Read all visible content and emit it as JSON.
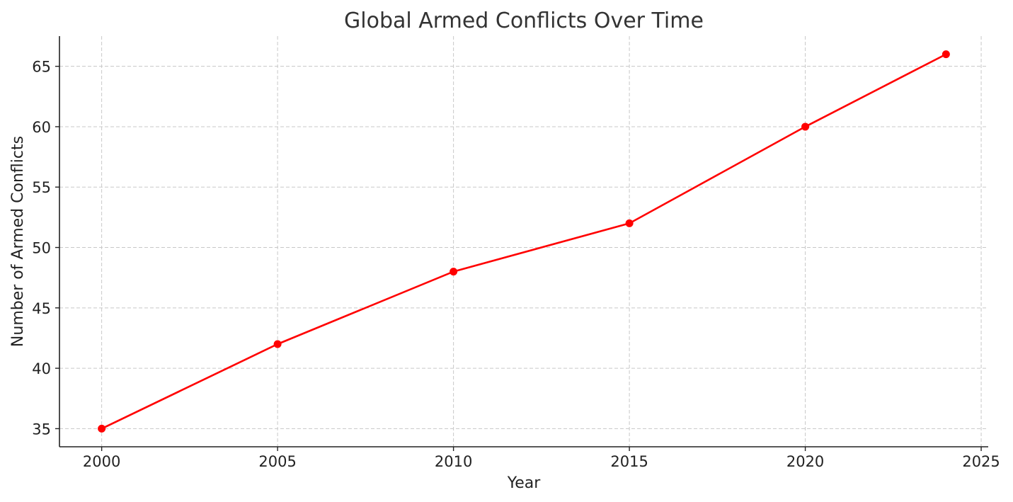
{
  "chart_data": {
    "type": "line",
    "title": "Global Armed Conflicts Over Time",
    "xlabel": "Year",
    "ylabel": "Number of Armed Conflicts",
    "x": [
      2000,
      2005,
      2010,
      2015,
      2020,
      2024
    ],
    "series": [
      {
        "values": [
          35,
          42,
          48,
          52,
          60,
          66
        ],
        "color": "#ff0000",
        "marker": "circle"
      }
    ],
    "xlim": [
      1998.8,
      2025.2
    ],
    "ylim": [
      33.5,
      67.5
    ],
    "xticks": [
      2000,
      2005,
      2010,
      2015,
      2020,
      2025
    ],
    "xtick_labels": [
      "2000",
      "2005",
      "2010",
      "2015",
      "2020",
      "2025"
    ],
    "yticks": [
      35,
      40,
      45,
      50,
      55,
      60,
      65
    ],
    "ytick_labels": [
      "35",
      "40",
      "45",
      "50",
      "55",
      "60",
      "65"
    ],
    "grid": true,
    "grid_style": "dashed",
    "legend": "none"
  }
}
